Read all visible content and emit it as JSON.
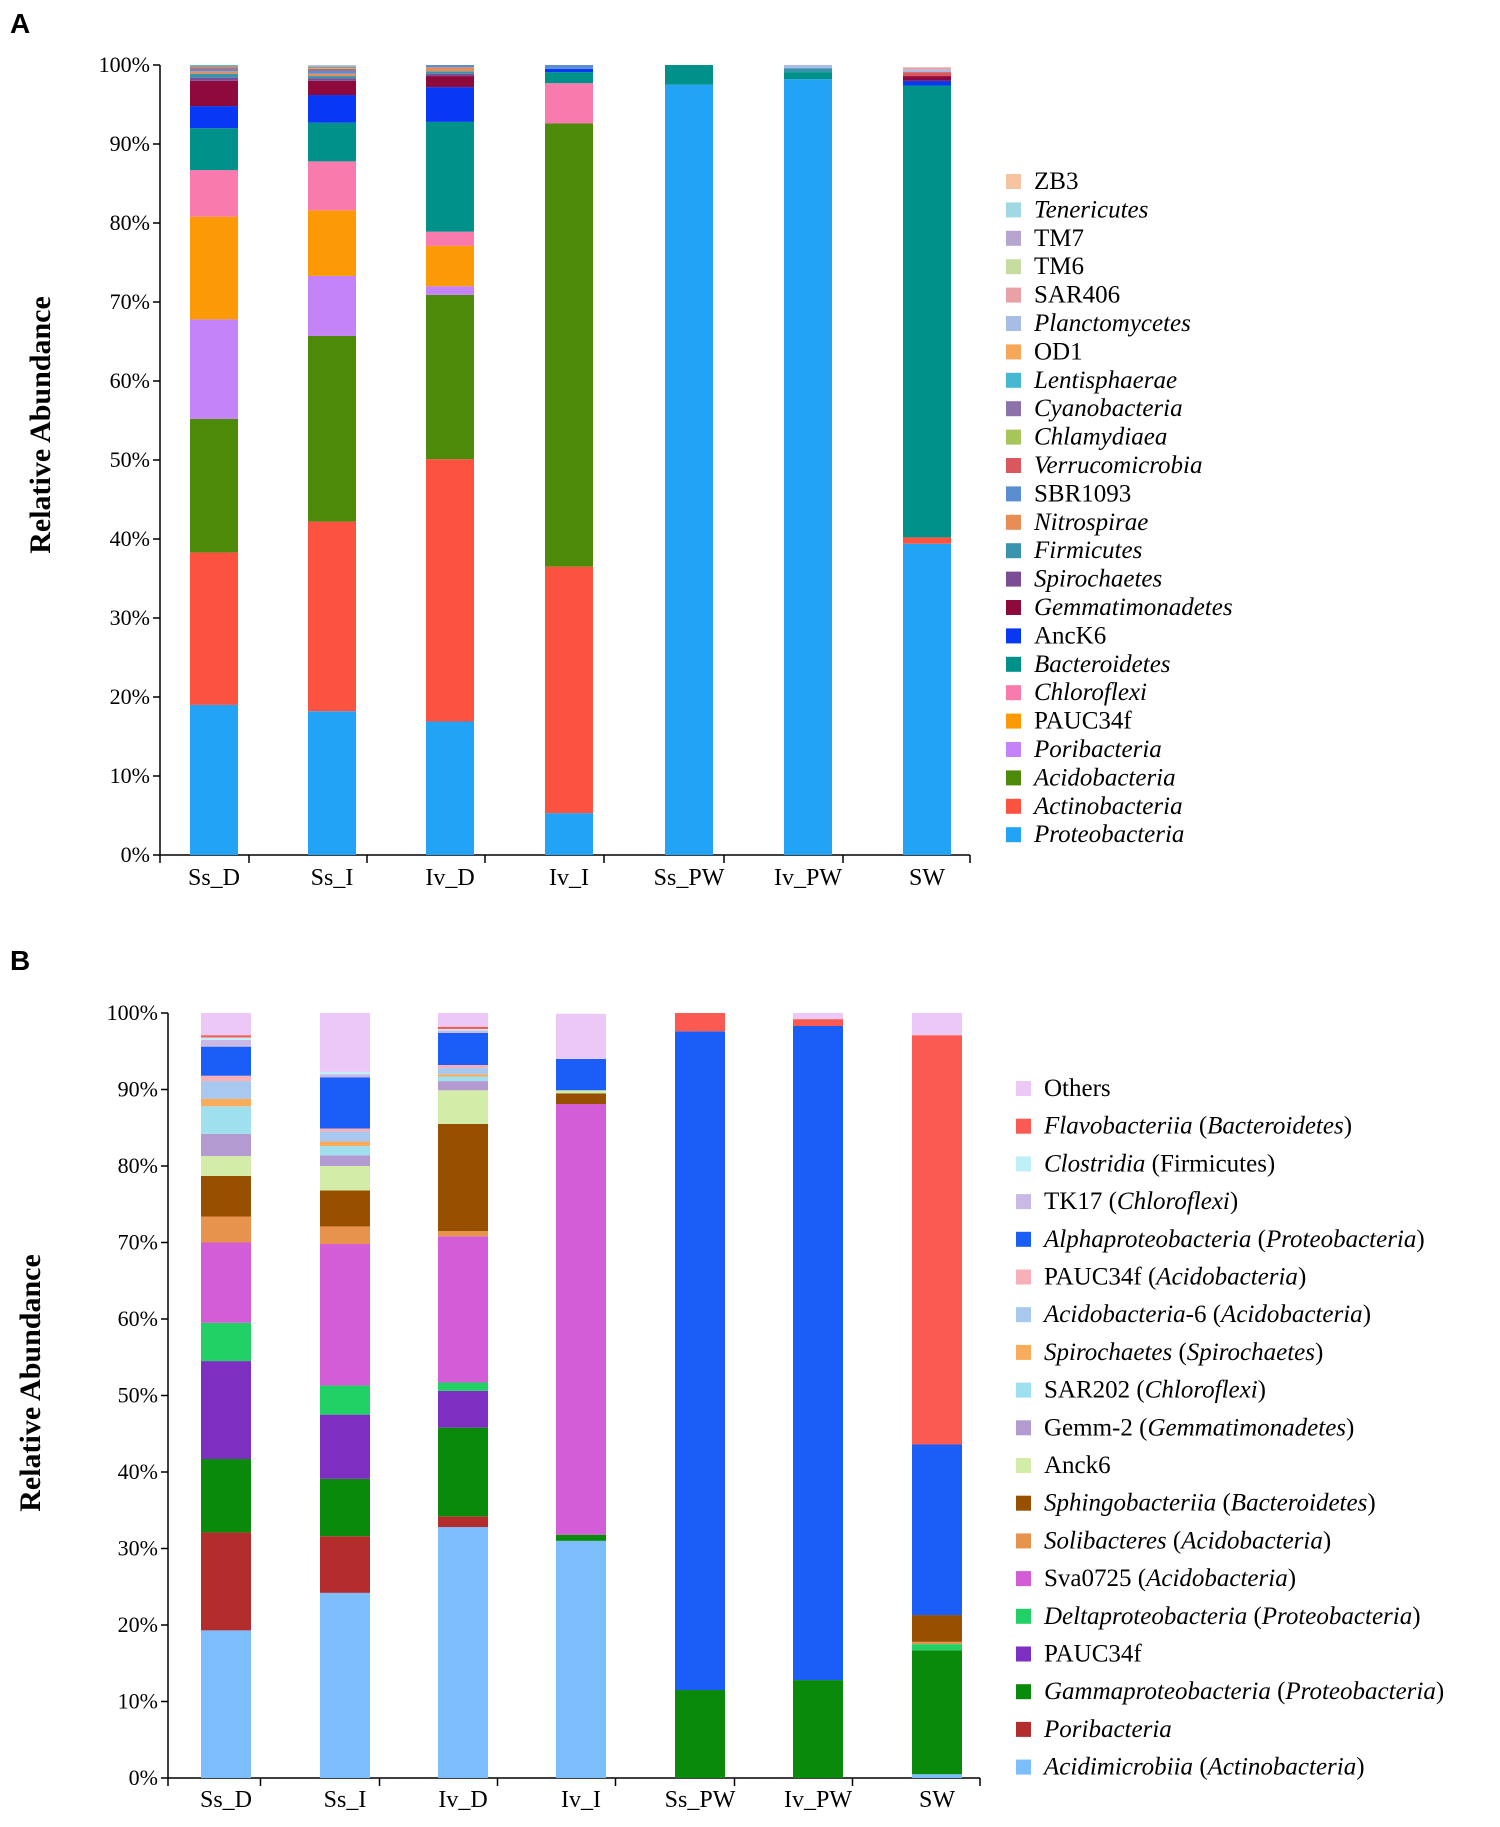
{
  "chart_data": [
    {
      "type": "bar",
      "stacked": true,
      "panel": "A",
      "ylabel": "Relative Abundance",
      "ylim": [
        0,
        100
      ],
      "yticks": [
        "0%",
        "10%",
        "20%",
        "30%",
        "40%",
        "50%",
        "60%",
        "70%",
        "80%",
        "90%",
        "100%"
      ],
      "categories": [
        "Ss_D",
        "Ss_I",
        "Iv_D",
        "Iv_I",
        "Ss_PW",
        "Iv_PW",
        "SW"
      ],
      "legend_position": "right",
      "series": [
        {
          "name": "Proteobacteria",
          "color": "#22a3f6",
          "italic": true,
          "values": [
            19.0,
            18.2,
            16.9,
            5.3,
            97.5,
            98.2,
            39.4
          ]
        },
        {
          "name": "Actinobacteria",
          "color": "#fb5340",
          "italic": true,
          "values": [
            19.3,
            24.0,
            33.2,
            31.2,
            0,
            0,
            0.8
          ]
        },
        {
          "name": "Acidobacteria",
          "color": "#4e8a0a",
          "italic": true,
          "values": [
            16.9,
            23.5,
            20.8,
            56.1,
            0,
            0,
            0
          ]
        },
        {
          "name": "Poribacteria",
          "color": "#c484f7",
          "italic": true,
          "values": [
            12.6,
            7.6,
            1.1,
            0,
            0,
            0,
            0
          ]
        },
        {
          "name": "PAUC34f",
          "color": "#fb9a06",
          "italic": false,
          "values": [
            13.0,
            8.3,
            5.1,
            0,
            0,
            0,
            0
          ]
        },
        {
          "name": "Chloroflexi",
          "color": "#f97aac",
          "italic": true,
          "values": [
            5.9,
            6.2,
            1.8,
            5.1,
            0,
            0,
            0
          ]
        },
        {
          "name": "Bacteroidetes",
          "color": "#00928a",
          "italic": true,
          "values": [
            5.3,
            4.9,
            13.9,
            1.4,
            2.5,
            0.9,
            57.2
          ]
        },
        {
          "name": "AncK6",
          "color": "#0938f5",
          "italic": false,
          "values": [
            2.8,
            3.5,
            4.4,
            0.4,
            0,
            0,
            0.6
          ]
        },
        {
          "name": "Gemmatimonadetes",
          "color": "#8f0a3c",
          "italic": true,
          "values": [
            3.2,
            1.8,
            1.4,
            0,
            0,
            0,
            0.6
          ]
        },
        {
          "name": "Spirochaetes",
          "color": "#7b4d94",
          "italic": true,
          "values": [
            0.4,
            0.3,
            0.3,
            0,
            0,
            0,
            0
          ]
        },
        {
          "name": "Firmicutes",
          "color": "#3a93ac",
          "italic": true,
          "values": [
            0.5,
            0.3,
            0.3,
            0,
            0,
            0.5,
            0
          ]
        },
        {
          "name": "Nitrospirae",
          "color": "#e98d57",
          "italic": true,
          "values": [
            0.3,
            0.3,
            0.5,
            0,
            0,
            0,
            0
          ]
        },
        {
          "name": "SBR1093",
          "color": "#5b8ed1",
          "italic": false,
          "values": [
            0.3,
            0.4,
            0.3,
            0.5,
            0,
            0,
            0
          ]
        },
        {
          "name": "Verrucomicrobia",
          "color": "#d9585e",
          "italic": true,
          "values": [
            0.2,
            0.2,
            0.5,
            0,
            0,
            0,
            0.5
          ]
        },
        {
          "name": "Chlamydiaea",
          "color": "#a6c55b",
          "italic": true,
          "values": [
            0.1,
            0.1,
            0.1,
            0,
            0,
            0,
            0
          ]
        },
        {
          "name": "Cyanobacteria",
          "color": "#8d71aa",
          "italic": true,
          "values": [
            0.1,
            0.1,
            0.1,
            0,
            0,
            0,
            0
          ]
        },
        {
          "name": "Lentisphaerae",
          "color": "#46b8d1",
          "italic": true,
          "values": [
            0.1,
            0.1,
            0.1,
            0,
            0,
            0,
            0
          ]
        },
        {
          "name": "OD1",
          "color": "#f8a65a",
          "italic": false,
          "values": [
            0.1,
            0.1,
            0.1,
            0,
            0,
            0,
            0
          ]
        },
        {
          "name": "Planctomycetes",
          "color": "#a7bde6",
          "italic": true,
          "values": [
            0.1,
            0.1,
            0.1,
            0.5,
            0,
            0.4,
            0.3
          ]
        },
        {
          "name": "SAR406",
          "color": "#e8a2a6",
          "italic": false,
          "values": [
            0.1,
            0.1,
            0.1,
            0,
            0,
            0,
            0.3
          ]
        },
        {
          "name": "TM6",
          "color": "#c6dca0",
          "italic": false,
          "values": [
            0.1,
            0,
            0,
            0,
            0,
            0,
            0
          ]
        },
        {
          "name": "TM7",
          "color": "#b6a6cf",
          "italic": false,
          "values": [
            0.1,
            0,
            0,
            0,
            0,
            0,
            0
          ]
        },
        {
          "name": "Tenericutes",
          "color": "#a2d8e4",
          "italic": true,
          "values": [
            0,
            0,
            0,
            0,
            0,
            0,
            0
          ]
        },
        {
          "name": "ZB3",
          "color": "#f6c4a0",
          "italic": false,
          "values": [
            0,
            0,
            0,
            0,
            0,
            0,
            0
          ]
        }
      ]
    },
    {
      "type": "bar",
      "stacked": true,
      "panel": "B",
      "ylabel": "Relative Abundance",
      "ylim": [
        0,
        100
      ],
      "yticks": [
        "0%",
        "10%",
        "20%",
        "30%",
        "40%",
        "50%",
        "60%",
        "70%",
        "80%",
        "90%",
        "100%"
      ],
      "categories": [
        "Ss_D",
        "Ss_I",
        "Iv_D",
        "Iv_I",
        "Ss_PW",
        "Iv_PW",
        "SW"
      ],
      "legend_position": "right",
      "series": [
        {
          "name": "Acidimicrobiia (Actinobacteria)",
          "parts": [
            [
              "Acidimicrobiia",
              true
            ],
            [
              " (",
              false
            ],
            [
              "Actinobacteria",
              true
            ],
            [
              ")",
              false
            ]
          ],
          "color": "#7cbdfb",
          "values": [
            19.3,
            24.2,
            32.8,
            31.0,
            0,
            0,
            0.5
          ]
        },
        {
          "name": "Poribacteria",
          "parts": [
            [
              "Poribacteria",
              true
            ]
          ],
          "color": "#b42d2d",
          "values": [
            12.8,
            7.4,
            1.4,
            0,
            0,
            0,
            0
          ]
        },
        {
          "name": "Gammaproteobacteria (Proteobacteria)",
          "parts": [
            [
              "Gammaproteobacteria",
              true
            ],
            [
              " (",
              false
            ],
            [
              "Proteobacteria",
              true
            ],
            [
              ")",
              false
            ]
          ],
          "color": "#0a8a0a",
          "values": [
            9.6,
            7.5,
            11.6,
            0.8,
            11.5,
            12.8,
            16.2
          ]
        },
        {
          "name": "PAUC34f",
          "parts": [
            [
              "PAUC34f",
              false
            ]
          ],
          "color": "#7d2fc2",
          "values": [
            12.8,
            8.4,
            4.8,
            0,
            0,
            0,
            0
          ]
        },
        {
          "name": "Deltaproteobacteria (Proteobacteria)",
          "parts": [
            [
              "Deltaproteobacteria",
              true
            ],
            [
              " (",
              false
            ],
            [
              "Proteobacteria",
              true
            ],
            [
              ")",
              false
            ]
          ],
          "color": "#22d165",
          "values": [
            5.0,
            3.8,
            1.1,
            0,
            0,
            0,
            0.8
          ]
        },
        {
          "name": "Sva0725 (Acidobacteria)",
          "parts": [
            [
              "Sva0725 (",
              false
            ],
            [
              "Acidobacteria",
              true
            ],
            [
              ")",
              false
            ]
          ],
          "color": "#d35dd6",
          "values": [
            10.5,
            18.5,
            19.1,
            56.3,
            0,
            0,
            0
          ]
        },
        {
          "name": "Solibacteres (Acidobacteria)",
          "parts": [
            [
              "Solibacteres",
              true
            ],
            [
              " (",
              false
            ],
            [
              "Acidobacteria",
              true
            ],
            [
              ")",
              false
            ]
          ],
          "color": "#e8934d",
          "values": [
            3.4,
            2.3,
            0.7,
            0,
            0,
            0,
            0.3
          ]
        },
        {
          "name": "Sphingobacteriia (Bacteroidetes)",
          "parts": [
            [
              "Sphingobacteriia",
              true
            ],
            [
              " (",
              false
            ],
            [
              "Bacteroidetes",
              true
            ],
            [
              ")",
              false
            ]
          ],
          "color": "#974f00",
          "values": [
            5.3,
            4.7,
            14.0,
            1.4,
            0,
            0,
            3.5
          ]
        },
        {
          "name": "Anck6",
          "parts": [
            [
              "Anck6",
              false
            ]
          ],
          "color": "#d3eca7",
          "values": [
            2.6,
            3.2,
            4.4,
            0.4,
            0,
            0,
            0
          ]
        },
        {
          "name": "Gemm-2 (Gemmatimonadetes)",
          "parts": [
            [
              "Gemm-2 (",
              false
            ],
            [
              "Gemmatimonadetes",
              true
            ],
            [
              ")",
              false
            ]
          ],
          "color": "#b39bd1",
          "values": [
            2.9,
            1.4,
            1.2,
            0,
            0,
            0,
            0
          ]
        },
        {
          "name": "SAR202 (Chloroflexi)",
          "parts": [
            [
              "SAR202 (",
              false
            ],
            [
              "Chloroflexi",
              true
            ],
            [
              ")",
              false
            ]
          ],
          "color": "#9fe0ee",
          "values": [
            3.6,
            1.2,
            0.6,
            0,
            0,
            0,
            0
          ]
        },
        {
          "name": "Spirochaetes (Spirochaetes)",
          "parts": [
            [
              "Spirochaetes",
              true
            ],
            [
              " (",
              false
            ],
            [
              "Spirochaetes",
              true
            ],
            [
              ")",
              false
            ]
          ],
          "color": "#f9ad5c",
          "values": [
            1.0,
            0.6,
            0.3,
            0,
            0,
            0,
            0
          ]
        },
        {
          "name": "Acidobacteria-6 (Acidobacteria)",
          "parts": [
            [
              "Acidobacteria",
              true
            ],
            [
              "-6 (",
              false
            ],
            [
              "Acidobacteria",
              true
            ],
            [
              ")",
              false
            ]
          ],
          "color": "#a9c8f0",
          "values": [
            2.3,
            1.3,
            0.8,
            0,
            0,
            0,
            0
          ]
        },
        {
          "name": "PAUC34f (Acidobacteria)",
          "parts": [
            [
              "PAUC34f (",
              false
            ],
            [
              "Acidobacteria",
              true
            ],
            [
              ")",
              false
            ]
          ],
          "color": "#f7b0b8",
          "values": [
            0.7,
            0.4,
            0.4,
            0,
            0,
            0,
            0
          ]
        },
        {
          "name": "Alphaproteobacteria (Proteobacteria)",
          "parts": [
            [
              "Alphaproteobacteria",
              true
            ],
            [
              " (",
              false
            ],
            [
              "Proteobacteria",
              true
            ],
            [
              ")",
              false
            ]
          ],
          "color": "#1a5ef7",
          "values": [
            3.8,
            6.7,
            4.2,
            4.1,
            86.1,
            85.5,
            22.3
          ]
        },
        {
          "name": "TK17 (Chloroflexi)",
          "parts": [
            [
              "TK17 (",
              false
            ],
            [
              "Chloroflexi",
              true
            ],
            [
              ")",
              false
            ]
          ],
          "color": "#c9b9e4",
          "values": [
            0.9,
            0.4,
            0.3,
            0,
            0,
            0,
            0
          ]
        },
        {
          "name": "Clostridia (Firmicutes)",
          "parts": [
            [
              "Clostridia",
              true
            ],
            [
              " (Firmicutes)",
              false
            ]
          ],
          "color": "#bdf0f7",
          "values": [
            0.3,
            0.3,
            0.2,
            0,
            0,
            0,
            0
          ]
        },
        {
          "name": "Flavobacteriia (Bacteroidetes)",
          "parts": [
            [
              "Flavobacteriia",
              true
            ],
            [
              " (",
              false
            ],
            [
              "Bacteroidetes",
              true
            ],
            [
              ")",
              false
            ]
          ],
          "color": "#fb5a52",
          "values": [
            0.3,
            0,
            0.3,
            0,
            2.4,
            0.9,
            53.5
          ]
        },
        {
          "name": "Others",
          "parts": [
            [
              "Others",
              false
            ]
          ],
          "color": "#ecc8f7",
          "values": [
            2.9,
            7.7,
            2.8,
            5.9,
            0.3,
            0.8,
            2.9
          ]
        }
      ]
    }
  ]
}
